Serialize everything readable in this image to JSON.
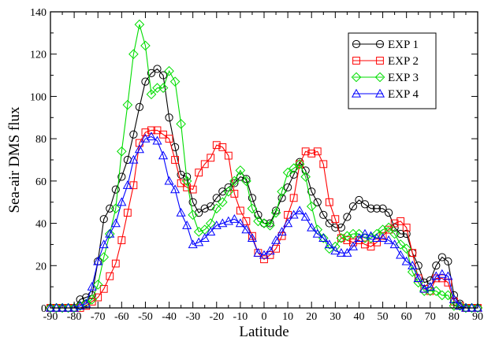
{
  "chart_data": {
    "type": "line",
    "title": "",
    "xlabel": "Latitude",
    "ylabel": "Sea-air DMS flux",
    "xlim": [
      -90,
      90
    ],
    "ylim": [
      0,
      140
    ],
    "xticks": [
      -90,
      -80,
      -70,
      -60,
      -50,
      -40,
      -30,
      -20,
      -10,
      0,
      10,
      20,
      30,
      40,
      50,
      60,
      70,
      80,
      90
    ],
    "yticks": [
      0,
      20,
      40,
      60,
      80,
      100,
      120,
      140
    ],
    "legend_position": "top-right",
    "grid": false,
    "x": [
      -90,
      -87.5,
      -85,
      -82.5,
      -80,
      -77.5,
      -75,
      -72.5,
      -70,
      -67.5,
      -65,
      -62.5,
      -60,
      -57.5,
      -55,
      -52.5,
      -50,
      -47.5,
      -45,
      -42.5,
      -40,
      -37.5,
      -35,
      -32.5,
      -30,
      -27.5,
      -25,
      -22.5,
      -20,
      -17.5,
      -15,
      -12.5,
      -10,
      -7.5,
      -5,
      -2.5,
      0,
      2.5,
      5,
      7.5,
      10,
      12.5,
      15,
      17.5,
      20,
      22.5,
      25,
      27.5,
      30,
      32.5,
      35,
      37.5,
      40,
      42.5,
      45,
      47.5,
      50,
      52.5,
      55,
      57.5,
      60,
      62.5,
      65,
      67.5,
      70,
      72.5,
      75,
      77.5,
      80,
      82.5,
      85,
      87.5,
      90
    ],
    "series": [
      {
        "name": "EXP 1",
        "color": "#000000",
        "marker": "circle",
        "values": [
          0,
          0,
          0,
          0,
          0,
          4,
          5,
          6,
          22,
          42,
          47,
          56,
          62,
          70,
          82,
          95,
          107,
          111,
          113,
          110,
          90,
          76,
          63,
          62,
          50,
          45,
          47,
          48,
          52,
          55,
          57,
          59,
          62,
          61,
          52,
          44,
          40,
          40,
          46,
          52,
          57,
          63,
          69,
          65,
          55,
          50,
          44,
          40,
          38,
          38,
          43,
          48,
          51,
          49,
          47,
          47,
          47,
          45,
          38,
          35,
          35,
          26,
          20,
          12,
          13,
          20,
          24,
          22,
          6,
          2,
          0,
          0,
          0
        ]
      },
      {
        "name": "EXP 2",
        "color": "#ff0000",
        "marker": "square",
        "values": [
          0,
          0,
          0,
          0,
          0,
          0,
          1,
          3,
          5,
          9,
          15,
          21,
          32,
          45,
          58,
          78,
          83,
          84,
          84,
          82,
          80,
          70,
          59,
          57,
          56,
          64,
          68,
          71,
          77,
          76,
          72,
          54,
          46,
          41,
          34,
          26,
          23,
          25,
          28,
          34,
          44,
          52,
          68,
          74,
          73,
          74,
          68,
          50,
          42,
          33,
          32,
          31,
          32,
          30,
          29,
          31,
          34,
          37,
          40,
          41,
          38,
          26,
          14,
          9,
          8,
          14,
          14,
          12,
          3,
          1,
          0,
          0,
          0
        ]
      },
      {
        "name": "EXP 3",
        "color": "#00dd00",
        "marker": "diamond",
        "values": [
          0,
          0,
          0,
          0,
          0,
          1,
          2,
          4,
          11,
          24,
          35,
          47,
          74,
          96,
          120,
          134,
          124,
          101,
          104,
          104,
          112,
          107,
          87,
          60,
          44,
          36,
          37,
          40,
          47,
          50,
          55,
          60,
          65,
          60,
          47,
          41,
          40,
          39,
          45,
          55,
          64,
          66,
          68,
          62,
          48,
          37,
          33,
          28,
          29,
          33,
          34,
          35,
          35,
          33,
          33,
          35,
          37,
          38,
          35,
          30,
          28,
          17,
          12,
          8,
          8,
          8,
          6,
          6,
          1,
          1,
          0,
          0,
          0
        ]
      },
      {
        "name": "EXP 4",
        "color": "#0000ff",
        "marker": "triangle",
        "values": [
          0,
          0,
          0,
          0,
          0,
          1,
          2,
          10,
          22,
          30,
          35,
          40,
          50,
          58,
          70,
          75,
          80,
          81,
          79,
          72,
          60,
          56,
          45,
          39,
          30,
          31,
          33,
          36,
          39,
          40,
          41,
          42,
          40,
          37,
          33,
          26,
          25,
          27,
          32,
          36,
          40,
          44,
          46,
          43,
          38,
          35,
          33,
          30,
          27,
          26,
          26,
          29,
          33,
          35,
          34,
          33,
          33,
          32,
          30,
          25,
          22,
          20,
          14,
          9,
          10,
          15,
          16,
          15,
          4,
          1,
          0,
          0,
          0
        ]
      }
    ]
  }
}
